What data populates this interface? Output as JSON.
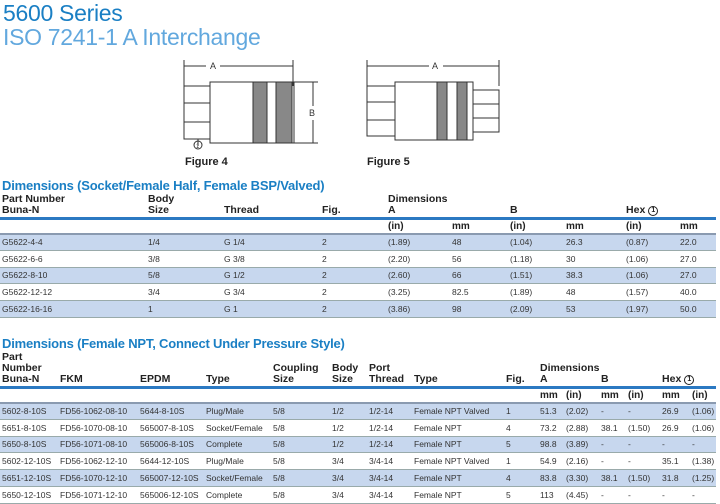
{
  "header": {
    "title": "5600 Series",
    "subtitle": "ISO 7241-1 A Interchange"
  },
  "figures": [
    {
      "caption": "Figure 4",
      "dim_a": "A",
      "dim_b": "B",
      "hex_note": "1"
    },
    {
      "caption": "Figure 5",
      "dim_a": "A"
    }
  ],
  "table1": {
    "title": "Dimensions (Socket/Female Half, Female BSP/Valved)",
    "headers": {
      "part": [
        "Part Number",
        "Buna-N"
      ],
      "body": [
        "Body",
        "Size"
      ],
      "thread": "Thread",
      "fig": "Fig.",
      "dims": "Dimensions",
      "a": "A",
      "b": "B",
      "hex": "Hex",
      "hex_note": "1"
    },
    "units": [
      "(in)",
      "mm",
      "(in)",
      "mm",
      "(in)",
      "mm"
    ],
    "rows": [
      [
        "G5622-4-4",
        "1/4",
        "G 1/4",
        "2",
        "(1.89)",
        "48",
        "(1.04)",
        "26.3",
        "(0.87)",
        "22.0"
      ],
      [
        "G5622-6-6",
        "3/8",
        "G 3/8",
        "2",
        "(2.20)",
        "56",
        "(1.18)",
        "30",
        "(1.06)",
        "27.0"
      ],
      [
        "G5622-8-10",
        "5/8",
        "G 1/2",
        "2",
        "(2.60)",
        "66",
        "(1.51)",
        "38.3",
        "(1.06)",
        "27.0"
      ],
      [
        "G5622-12-12",
        "3/4",
        "G 3/4",
        "2",
        "(3.25)",
        "82.5",
        "(1.89)",
        "48",
        "(1.57)",
        "40.0"
      ],
      [
        "G5622-16-16",
        "1",
        "G 1",
        "2",
        "(3.86)",
        "98",
        "(2.09)",
        "53",
        "(1.97)",
        "50.0"
      ]
    ]
  },
  "table2": {
    "title": "Dimensions (Female NPT, Connect Under Pressure Style)",
    "headers": {
      "part": "Part Number",
      "buna": "Buna-N",
      "fkm": "FKM",
      "epdm": "EPDM",
      "type": "Type",
      "coupling": [
        "Coupling",
        "Size"
      ],
      "body": [
        "Body",
        "Size"
      ],
      "port": [
        "Port",
        "Thread"
      ],
      "type2": "Type",
      "fig": "Fig.",
      "dims": "Dimensions",
      "a": "A",
      "b": "B",
      "hex": "Hex",
      "hex_note": "1"
    },
    "units": [
      "mm",
      "(in)",
      "mm",
      "(in)",
      "mm",
      "(in)"
    ],
    "rows": [
      [
        "5602-8-10S",
        "FD56-1062-08-10",
        "5644-8-10S",
        "Plug/Male",
        "5/8",
        "1/2",
        "1/2-14",
        "Female NPT Valved",
        "1",
        "51.3",
        "(2.02)",
        "-",
        "-",
        "26.9",
        "(1.06)"
      ],
      [
        "5651-8-10S",
        "FD56-1070-08-10",
        "565007-8-10S",
        "Socket/Female",
        "5/8",
        "1/2",
        "1/2-14",
        "Female NPT",
        "4",
        "73.2",
        "(2.88)",
        "38.1",
        "(1.50)",
        "26.9",
        "(1.06)"
      ],
      [
        "5650-8-10S",
        "FD56-1071-08-10",
        "565006-8-10S",
        "Complete",
        "5/8",
        "1/2",
        "1/2-14",
        "Female NPT",
        "5",
        "98.8",
        "(3.89)",
        "-",
        "-",
        "-",
        "-"
      ],
      [
        "5602-12-10S",
        "FD56-1062-12-10",
        "5644-12-10S",
        "Plug/Male",
        "5/8",
        "3/4",
        "3/4-14",
        "Female NPT Valved",
        "1",
        "54.9",
        "(2.16)",
        "-",
        "-",
        "35.1",
        "(1.38)"
      ],
      [
        "5651-12-10S",
        "FD56-1070-12-10",
        "565007-12-10S",
        "Socket/Female",
        "5/8",
        "3/4",
        "3/4-14",
        "Female NPT",
        "4",
        "83.8",
        "(3.30)",
        "38.1",
        "(1.50)",
        "31.8",
        "(1.25)"
      ],
      [
        "5650-12-10S",
        "FD56-1071-12-10",
        "565006-12-10S",
        "Complete",
        "5/8",
        "3/4",
        "3/4-14",
        "Female NPT",
        "5",
        "113",
        "(4.45)",
        "-",
        "-",
        "-",
        "-"
      ]
    ]
  },
  "colors": {
    "title": "#1a7fc4",
    "subtitle": "#62a8de",
    "row_shade": "#c7d7ee",
    "rule": "#2b79c2"
  }
}
